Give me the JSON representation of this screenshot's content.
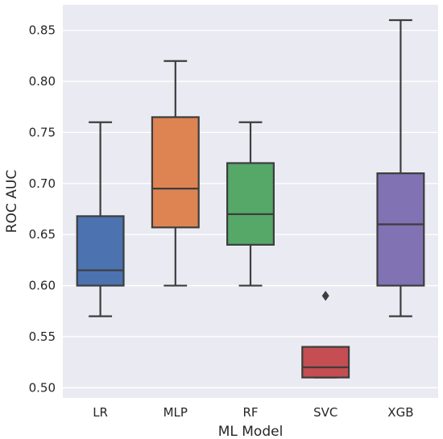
{
  "chart_data": {
    "type": "box",
    "xlabel": "ML Model",
    "ylabel": "ROC AUC",
    "ylim": [
      0.49,
      0.875
    ],
    "yticks": [
      0.5,
      0.55,
      0.6,
      0.65,
      0.7,
      0.75,
      0.8,
      0.85
    ],
    "ytick_labels": [
      "0.50",
      "0.55",
      "0.60",
      "0.65",
      "0.70",
      "0.75",
      "0.80",
      "0.85"
    ],
    "grid": true,
    "background": "#eaeaf2",
    "categories": [
      "LR",
      "MLP",
      "RF",
      "SVC",
      "XGB"
    ],
    "boxes": [
      {
        "category": "LR",
        "min": 0.57,
        "q1": 0.6,
        "median": 0.615,
        "q3": 0.668,
        "max": 0.76,
        "outliers": [],
        "color": "#4c72b0"
      },
      {
        "category": "MLP",
        "min": 0.6,
        "q1": 0.657,
        "median": 0.695,
        "q3": 0.765,
        "max": 0.82,
        "outliers": [],
        "color": "#dd8452"
      },
      {
        "category": "RF",
        "min": 0.6,
        "q1": 0.64,
        "median": 0.67,
        "q3": 0.72,
        "max": 0.76,
        "outliers": [],
        "color": "#55a868"
      },
      {
        "category": "SVC",
        "min": 0.51,
        "q1": 0.51,
        "median": 0.52,
        "q3": 0.54,
        "max": 0.54,
        "outliers": [
          0.59
        ],
        "color": "#c44e52"
      },
      {
        "category": "XGB",
        "min": 0.57,
        "q1": 0.6,
        "median": 0.66,
        "q3": 0.71,
        "max": 0.86,
        "outliers": [],
        "color": "#8172b3"
      }
    ]
  }
}
